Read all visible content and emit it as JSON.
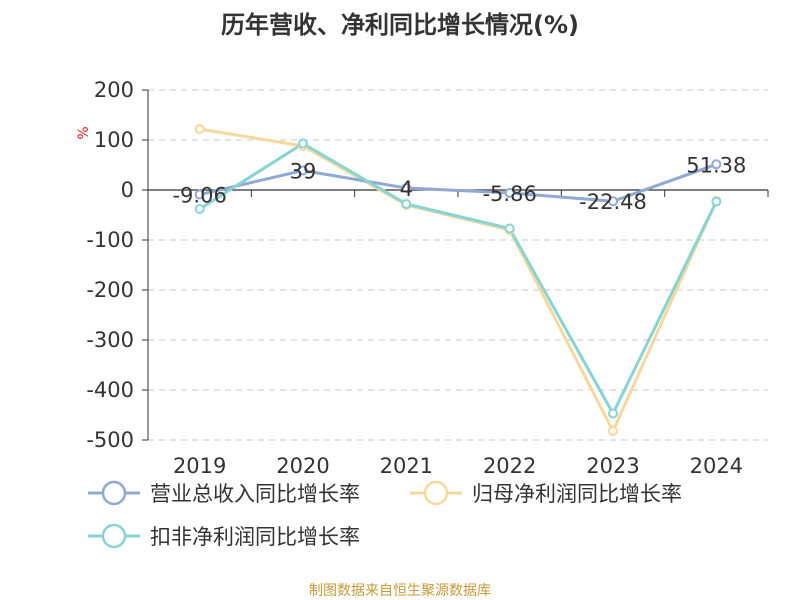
{
  "chart_data": {
    "type": "line",
    "title": "历年营收、净利同比增长情况(%)",
    "ylabel": "%",
    "ylim": [
      -500,
      200
    ],
    "yticks": [
      200,
      100,
      0,
      -100,
      -200,
      -300,
      -400,
      -500
    ],
    "categories": [
      "2019",
      "2020",
      "2021",
      "2022",
      "2023",
      "2024"
    ],
    "grid": true,
    "legend_position": "bottom",
    "series": [
      {
        "name": "营业总收入同比增长率",
        "color": "#8fa8d6",
        "values": [
          -9.06,
          39,
          4,
          -5.86,
          -22.48,
          51.38
        ],
        "labels": [
          "-9.06",
          "39",
          "4",
          "-5.86",
          "-22.48",
          "51.38"
        ]
      },
      {
        "name": "归母净利润同比增长率",
        "color": "#f7d79c",
        "values": [
          122,
          88,
          -30,
          -80,
          -482,
          -22
        ]
      },
      {
        "name": "扣非净利润同比增长率",
        "color": "#86d4d4",
        "values": [
          -38,
          93,
          -28,
          -77,
          -447,
          -23
        ]
      }
    ]
  },
  "source": "制图数据来自恒生聚源数据库"
}
